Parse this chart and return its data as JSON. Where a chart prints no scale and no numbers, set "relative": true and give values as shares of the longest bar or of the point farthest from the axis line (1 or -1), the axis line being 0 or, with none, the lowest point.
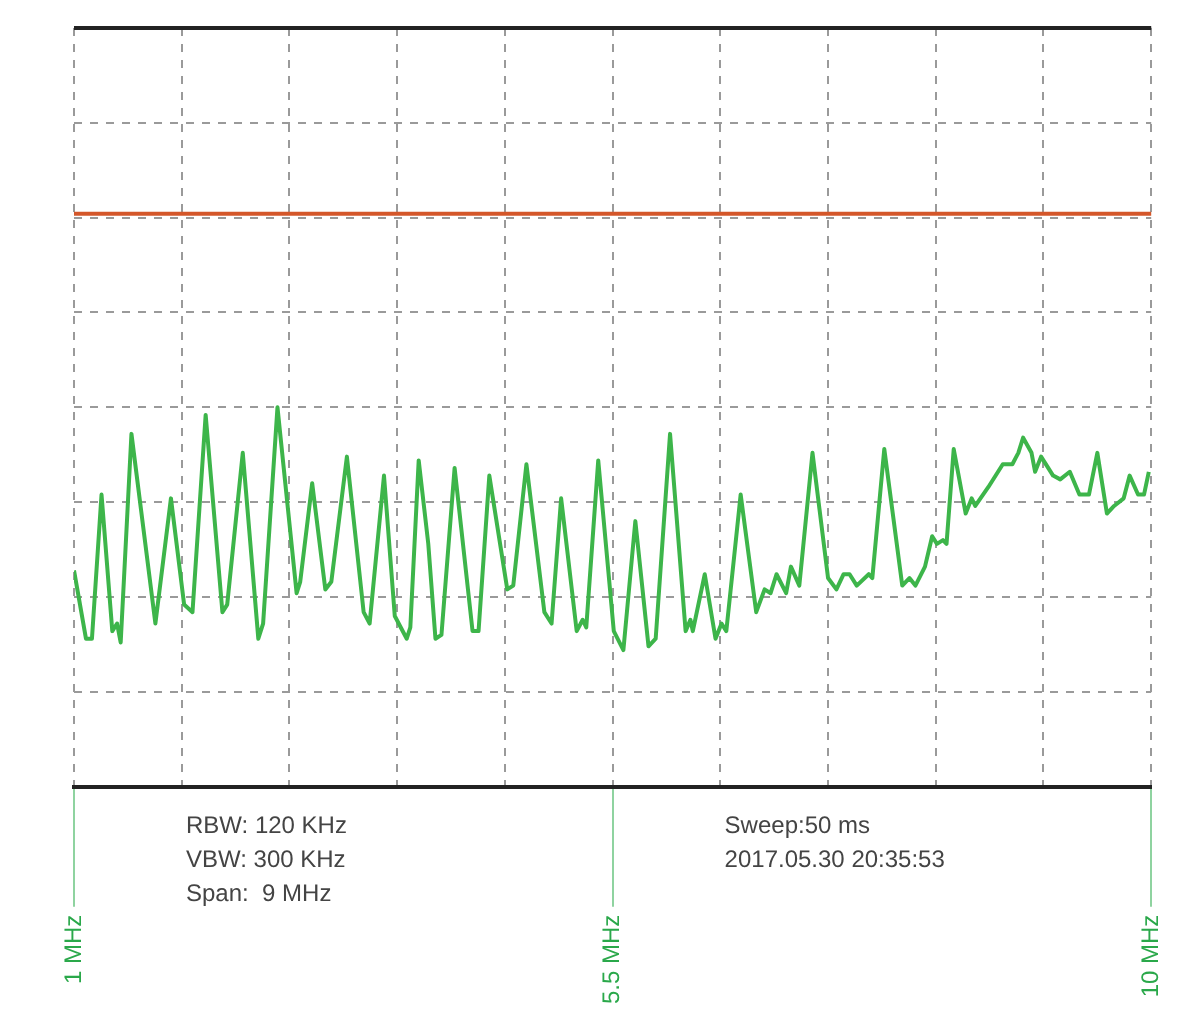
{
  "chart_data": {
    "type": "line",
    "relative": true,
    "x": [
      1.0,
      1.1,
      1.15,
      1.23,
      1.32,
      1.36,
      1.39,
      1.48,
      1.68,
      1.81,
      1.92,
      1.99,
      2.1,
      2.24,
      2.28,
      2.41,
      2.54,
      2.58,
      2.7,
      2.86,
      2.89,
      2.99,
      3.1,
      3.15,
      3.28,
      3.42,
      3.47,
      3.59,
      3.68,
      3.78,
      3.81,
      3.88,
      3.96,
      4.02,
      4.07,
      4.18,
      4.33,
      4.38,
      4.47,
      4.62,
      4.67,
      4.78,
      4.93,
      4.99,
      5.07,
      5.2,
      5.25,
      5.28,
      5.38,
      5.51,
      5.59,
      5.69,
      5.8,
      5.86,
      5.98,
      6.11,
      6.15,
      6.17,
      6.27,
      6.36,
      6.41,
      6.45,
      6.57,
      6.7,
      6.77,
      6.82,
      6.87,
      6.95,
      6.99,
      7.06,
      7.17,
      7.3,
      7.37,
      7.43,
      7.48,
      7.54,
      7.64,
      7.67,
      7.77,
      7.92,
      7.98,
      8.03,
      8.11,
      8.17,
      8.21,
      8.26,
      8.29,
      8.35,
      8.45,
      8.5,
      8.53,
      8.64,
      8.76,
      8.84,
      8.89,
      8.93,
      9.0,
      9.03,
      9.08,
      9.18,
      9.24,
      9.32,
      9.4,
      9.48,
      9.55,
      9.63,
      9.69,
      9.77,
      9.82,
      9.89,
      9.94,
      9.98
    ],
    "series": [
      {
        "color": "#3db54a",
        "values": [
          0.57,
          0.39,
          0.39,
          0.77,
          0.41,
          0.43,
          0.38,
          0.93,
          0.43,
          0.76,
          0.48,
          0.46,
          0.98,
          0.46,
          0.48,
          0.88,
          0.39,
          0.43,
          1.0,
          0.51,
          0.54,
          0.8,
          0.52,
          0.54,
          0.87,
          0.46,
          0.43,
          0.82,
          0.45,
          0.39,
          0.42,
          0.86,
          0.64,
          0.39,
          0.4,
          0.84,
          0.41,
          0.41,
          0.82,
          0.52,
          0.53,
          0.85,
          0.46,
          0.43,
          0.76,
          0.41,
          0.44,
          0.42,
          0.86,
          0.41,
          0.36,
          0.7,
          0.37,
          0.39,
          0.93,
          0.41,
          0.44,
          0.41,
          0.56,
          0.39,
          0.43,
          0.41,
          0.77,
          0.46,
          0.52,
          0.51,
          0.56,
          0.51,
          0.58,
          0.53,
          0.88,
          0.55,
          0.52,
          0.56,
          0.56,
          0.53,
          0.56,
          0.55,
          0.89,
          0.53,
          0.55,
          0.53,
          0.58,
          0.66,
          0.64,
          0.65,
          0.64,
          0.89,
          0.72,
          0.76,
          0.74,
          0.79,
          0.85,
          0.85,
          0.88,
          0.92,
          0.88,
          0.83,
          0.87,
          0.82,
          0.81,
          0.83,
          0.77,
          0.77,
          0.88,
          0.72,
          0.74,
          0.76,
          0.82,
          0.77,
          0.77,
          0.83
        ]
      }
    ],
    "xlim": [
      1,
      10
    ],
    "xticks": [
      {
        "value": 1,
        "label": "1 MHz"
      },
      {
        "value": 1.9,
        "label": null
      },
      {
        "value": 2.8,
        "label": null
      },
      {
        "value": 3.7,
        "label": null
      },
      {
        "value": 4.6,
        "label": null
      },
      {
        "value": 5.5,
        "label": "5.5 MHz"
      },
      {
        "value": 6.4,
        "label": null
      },
      {
        "value": 7.3,
        "label": null
      },
      {
        "value": 8.2,
        "label": null
      },
      {
        "value": 9.1,
        "label": null
      },
      {
        "value": 10,
        "label": "10 MHz"
      }
    ],
    "ref_lines": [
      {
        "axis": "y",
        "value": 1.51,
        "color": "#d4572a"
      }
    ],
    "grid": true,
    "line_style": "solid",
    "annotations": [
      "RBW: 120 KHz",
      "VBW: 300 KHz",
      "Span:  9 MHz",
      "Sweep:50 ms",
      "2017.05.30 20:35:53"
    ]
  }
}
